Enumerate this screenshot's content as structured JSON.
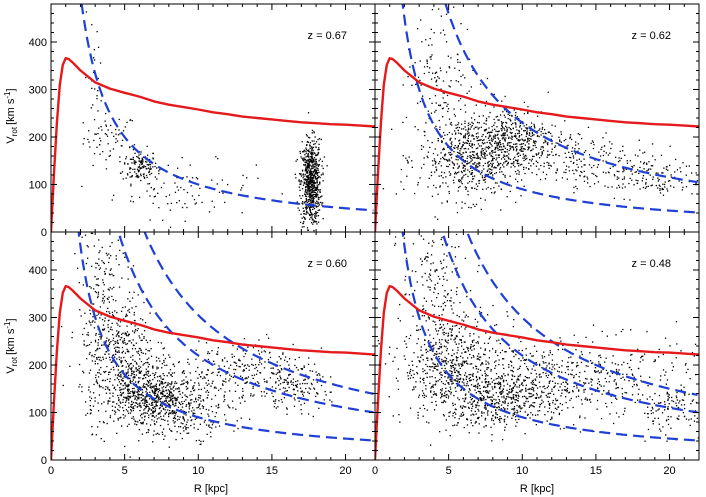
{
  "chart_data": {
    "type": "scatter",
    "xlabel": "R [kpc]",
    "ylabel": "V",
    "ylabel_sub": "rot",
    "ylabel_unit_open": "[km s",
    "ylabel_unit_sup": "-1",
    "ylabel_unit_close": "]",
    "xlim": [
      0,
      22
    ],
    "ylim": [
      0,
      480
    ],
    "xticks": [
      0,
      5,
      10,
      15,
      20
    ],
    "yticks": [
      0,
      100,
      200,
      300,
      400
    ],
    "colors": {
      "rotation_curve": "#e41a1c",
      "shell": "#1f3fd6",
      "particles": "#000000"
    },
    "rotation_curve": {
      "x": [
        0,
        0.2,
        0.4,
        0.6,
        0.8,
        1.0,
        1.2,
        1.5,
        2,
        3,
        4,
        5,
        6,
        7,
        8,
        9,
        10,
        11,
        12,
        13,
        14,
        15,
        16,
        17,
        18,
        19,
        20,
        21,
        22
      ],
      "y": [
        0,
        120,
        230,
        310,
        352,
        366,
        364,
        356,
        340,
        315,
        302,
        293,
        285,
        275,
        268,
        263,
        258,
        252,
        248,
        243,
        240,
        237,
        234,
        231,
        229,
        227,
        226,
        224,
        222
      ]
    },
    "panels": [
      {
        "label": "z = 0.67",
        "shell_coeffs": [
          1000
        ],
        "clumps": [
          {
            "cx": 4,
            "cy": 200,
            "sx": 0.9,
            "sy": 25,
            "n": 60
          },
          {
            "cx": 6,
            "cy": 140,
            "sx": 0.6,
            "sy": 18,
            "n": 140
          },
          {
            "cx": 9,
            "cy": 90,
            "sx": 2.4,
            "sy": 30,
            "n": 90
          },
          {
            "cx": 17.6,
            "cy": 105,
            "sx": 0.35,
            "sy": 45,
            "n": 700
          },
          {
            "cx": 3,
            "cy": 330,
            "sx": 0.4,
            "sy": 60,
            "n": 25
          }
        ]
      },
      {
        "label": "z = 0.62",
        "shell_coeffs": [
          900,
          2300
        ],
        "clumps": [
          {
            "cx": 6.5,
            "cy": 160,
            "sx": 1.8,
            "sy": 45,
            "n": 650
          },
          {
            "cx": 9.5,
            "cy": 200,
            "sx": 1.4,
            "sy": 35,
            "n": 350
          },
          {
            "cx": 13,
            "cy": 160,
            "sx": 2.8,
            "sy": 30,
            "n": 200
          },
          {
            "cx": 18,
            "cy": 115,
            "sx": 2.2,
            "sy": 20,
            "n": 150
          },
          {
            "cx": 4.5,
            "cy": 340,
            "sx": 1.2,
            "sy": 60,
            "n": 120
          }
        ]
      },
      {
        "label": "z = 0.60",
        "shell_coeffs": [
          900,
          2200,
          3050
        ],
        "clumps": [
          {
            "cx": 4.5,
            "cy": 220,
            "sx": 1.3,
            "sy": 70,
            "n": 500
          },
          {
            "cx": 6.5,
            "cy": 140,
            "sx": 1.4,
            "sy": 35,
            "n": 550
          },
          {
            "cx": 9,
            "cy": 110,
            "sx": 1.6,
            "sy": 30,
            "n": 300
          },
          {
            "cx": 13,
            "cy": 190,
            "sx": 2.2,
            "sy": 35,
            "n": 250
          },
          {
            "cx": 16.5,
            "cy": 150,
            "sx": 1.2,
            "sy": 22,
            "n": 120
          },
          {
            "cx": 3.5,
            "cy": 390,
            "sx": 0.8,
            "sy": 60,
            "n": 100
          }
        ]
      },
      {
        "label": "z = 0.48",
        "shell_coeffs": [
          900,
          2200,
          3000
        ],
        "clumps": [
          {
            "cx": 5,
            "cy": 200,
            "sx": 1.6,
            "sy": 60,
            "n": 600
          },
          {
            "cx": 8.5,
            "cy": 130,
            "sx": 1.8,
            "sy": 30,
            "n": 450
          },
          {
            "cx": 11,
            "cy": 180,
            "sx": 2.5,
            "sy": 45,
            "n": 300
          },
          {
            "cx": 16,
            "cy": 170,
            "sx": 3,
            "sy": 45,
            "n": 250
          },
          {
            "cx": 20,
            "cy": 110,
            "sx": 1.3,
            "sy": 25,
            "n": 100
          },
          {
            "cx": 4,
            "cy": 390,
            "sx": 1.1,
            "sy": 60,
            "n": 140
          }
        ]
      }
    ]
  }
}
